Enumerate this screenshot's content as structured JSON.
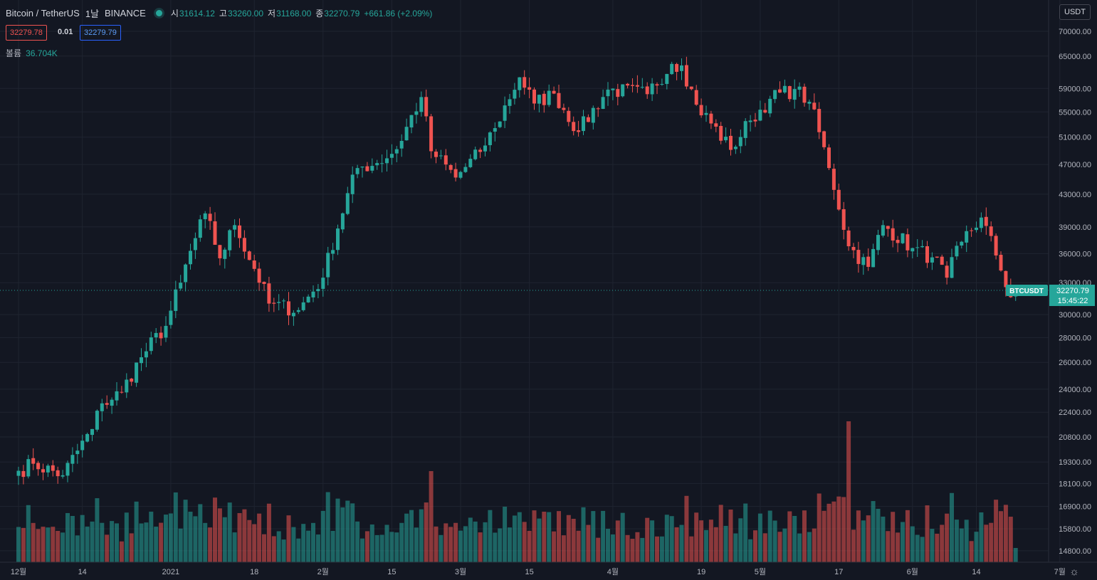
{
  "header": {
    "symbol": "Bitcoin / TetherUS",
    "interval": "1날",
    "exchange": "BINANCE",
    "open_label": "시",
    "open": "31614.12",
    "high_label": "고",
    "high": "33260.00",
    "low_label": "저",
    "low": "31168.00",
    "close_label": "종",
    "close": "32270.79",
    "change": "+661.86 (+2.09%)"
  },
  "order": {
    "sell_price": "32279.78",
    "spread": "0.01",
    "buy_price": "32279.79"
  },
  "volume": {
    "label": "볼륨",
    "value": "36.704K"
  },
  "scale_button": "USDT",
  "last_price": {
    "symbol": "BTCUSDT",
    "price": "32270.79",
    "countdown": "15:45:22"
  },
  "colors": {
    "up": "#26a69a",
    "down": "#ef5350",
    "background": "#131722",
    "grid": "#1f2430"
  },
  "chart_data": {
    "type": "candlestick",
    "price_ticks": [
      "70000.00",
      "65000.00",
      "59000.00",
      "55000.00",
      "51000.00",
      "47000.00",
      "43000.00",
      "39000.00",
      "36000.00",
      "33000.00",
      "30000.00",
      "28000.00",
      "26000.00",
      "24000.00",
      "22400.00",
      "20800.00",
      "19300.00",
      "18100.00",
      "16900.00",
      "15800.00",
      "14800.00"
    ],
    "time_ticks": [
      "12월",
      "14",
      "2021",
      "18",
      "2월",
      "15",
      "3월",
      "15",
      "4월",
      "19",
      "5월",
      "17",
      "6월",
      "14",
      "7월"
    ],
    "close_anchors": [
      {
        "date": "2020-12-01",
        "close": 18800
      },
      {
        "date": "2020-12-04",
        "close": 19200
      },
      {
        "date": "2020-12-10",
        "close": 18550
      },
      {
        "date": "2020-12-16",
        "close": 21300
      },
      {
        "date": "2020-12-18",
        "close": 23000
      },
      {
        "date": "2020-12-22",
        "close": 23800
      },
      {
        "date": "2020-12-26",
        "close": 26400
      },
      {
        "date": "2020-12-31",
        "close": 29000
      },
      {
        "date": "2021-01-03",
        "close": 33000
      },
      {
        "date": "2021-01-08",
        "close": 40600
      },
      {
        "date": "2021-01-11",
        "close": 35500
      },
      {
        "date": "2021-01-14",
        "close": 39200
      },
      {
        "date": "2021-01-21",
        "close": 31000
      },
      {
        "date": "2021-01-27",
        "close": 30400
      },
      {
        "date": "2021-02-01",
        "close": 33500
      },
      {
        "date": "2021-02-08",
        "close": 46500
      },
      {
        "date": "2021-02-12",
        "close": 47200
      },
      {
        "date": "2021-02-16",
        "close": 49200
      },
      {
        "date": "2021-02-21",
        "close": 57500
      },
      {
        "date": "2021-02-23",
        "close": 48900
      },
      {
        "date": "2021-02-28",
        "close": 45200
      },
      {
        "date": "2021-03-05",
        "close": 48800
      },
      {
        "date": "2021-03-08",
        "close": 52400
      },
      {
        "date": "2021-03-13",
        "close": 61000
      },
      {
        "date": "2021-03-16",
        "close": 56400
      },
      {
        "date": "2021-03-20",
        "close": 58100
      },
      {
        "date": "2021-03-25",
        "close": 51800
      },
      {
        "date": "2021-03-31",
        "close": 58800
      },
      {
        "date": "2021-04-08",
        "close": 58000
      },
      {
        "date": "2021-04-13",
        "close": 63500
      },
      {
        "date": "2021-04-15",
        "close": 63200
      },
      {
        "date": "2021-04-18",
        "close": 56200
      },
      {
        "date": "2021-04-25",
        "close": 49100
      },
      {
        "date": "2021-04-29",
        "close": 53600
      },
      {
        "date": "2021-05-03",
        "close": 57200
      },
      {
        "date": "2021-05-08",
        "close": 58900
      },
      {
        "date": "2021-05-11",
        "close": 56700
      },
      {
        "date": "2021-05-15",
        "close": 46500
      },
      {
        "date": "2021-05-19",
        "close": 36800
      },
      {
        "date": "2021-05-23",
        "close": 34600
      },
      {
        "date": "2021-05-26",
        "close": 39200
      },
      {
        "date": "2021-06-01",
        "close": 36600
      },
      {
        "date": "2021-06-05",
        "close": 35600
      },
      {
        "date": "2021-06-08",
        "close": 33500
      },
      {
        "date": "2021-06-11",
        "close": 37300
      },
      {
        "date": "2021-06-15",
        "close": 40100
      },
      {
        "date": "2021-06-18",
        "close": 35800
      },
      {
        "date": "2021-06-21",
        "close": 31600
      },
      {
        "date": "2021-06-22",
        "close": 32270.79
      }
    ],
    "volume_note": "daily volume bars, peak near 2021-05-19",
    "last_close": 32270.79
  }
}
